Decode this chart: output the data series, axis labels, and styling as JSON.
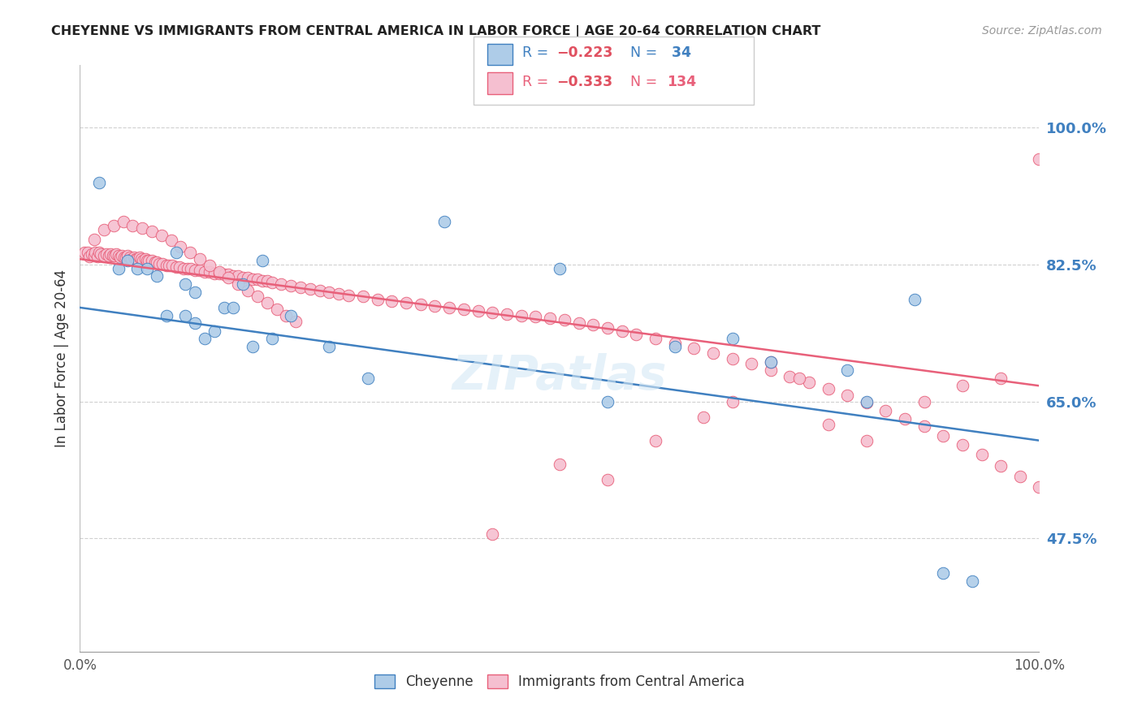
{
  "title": "CHEYENNE VS IMMIGRANTS FROM CENTRAL AMERICA IN LABOR FORCE | AGE 20-64 CORRELATION CHART",
  "source": "Source: ZipAtlas.com",
  "ylabel": "In Labor Force | Age 20-64",
  "xlim": [
    0.0,
    1.0
  ],
  "ylim": [
    0.33,
    1.08
  ],
  "yticks": [
    0.475,
    0.65,
    0.825,
    1.0
  ],
  "ytick_labels": [
    "47.5%",
    "65.0%",
    "82.5%",
    "100.0%"
  ],
  "xticks": [
    0.0,
    1.0
  ],
  "xtick_labels": [
    "0.0%",
    "100.0%"
  ],
  "legend_label_blue": "Cheyenne",
  "legend_label_pink": "Immigrants from Central America",
  "blue_scatter_x": [
    0.02,
    0.04,
    0.05,
    0.06,
    0.07,
    0.08,
    0.09,
    0.1,
    0.11,
    0.11,
    0.12,
    0.12,
    0.13,
    0.14,
    0.15,
    0.16,
    0.17,
    0.18,
    0.19,
    0.2,
    0.22,
    0.26,
    0.3,
    0.38,
    0.5,
    0.55,
    0.62,
    0.68,
    0.72,
    0.8,
    0.82,
    0.87,
    0.9,
    0.93
  ],
  "blue_scatter_y": [
    0.93,
    0.82,
    0.83,
    0.82,
    0.82,
    0.81,
    0.76,
    0.84,
    0.8,
    0.76,
    0.79,
    0.75,
    0.73,
    0.74,
    0.77,
    0.77,
    0.8,
    0.72,
    0.83,
    0.73,
    0.76,
    0.72,
    0.68,
    0.88,
    0.82,
    0.65,
    0.72,
    0.73,
    0.7,
    0.69,
    0.65,
    0.78,
    0.43,
    0.42
  ],
  "pink_scatter_x": [
    0.005,
    0.008,
    0.01,
    0.012,
    0.015,
    0.016,
    0.018,
    0.02,
    0.022,
    0.025,
    0.028,
    0.03,
    0.032,
    0.034,
    0.036,
    0.038,
    0.04,
    0.042,
    0.044,
    0.046,
    0.048,
    0.05,
    0.052,
    0.054,
    0.056,
    0.058,
    0.06,
    0.062,
    0.064,
    0.066,
    0.068,
    0.07,
    0.072,
    0.075,
    0.078,
    0.08,
    0.083,
    0.086,
    0.09,
    0.093,
    0.096,
    0.1,
    0.104,
    0.108,
    0.112,
    0.116,
    0.12,
    0.125,
    0.13,
    0.135,
    0.14,
    0.145,
    0.15,
    0.155,
    0.16,
    0.165,
    0.17,
    0.175,
    0.18,
    0.185,
    0.19,
    0.195,
    0.2,
    0.21,
    0.22,
    0.23,
    0.24,
    0.25,
    0.26,
    0.27,
    0.28,
    0.295,
    0.31,
    0.325,
    0.34,
    0.355,
    0.37,
    0.385,
    0.4,
    0.415,
    0.43,
    0.445,
    0.46,
    0.475,
    0.49,
    0.505,
    0.52,
    0.535,
    0.55,
    0.565,
    0.58,
    0.6,
    0.62,
    0.64,
    0.66,
    0.68,
    0.7,
    0.72,
    0.74,
    0.76,
    0.78,
    0.8,
    0.82,
    0.84,
    0.86,
    0.88,
    0.9,
    0.92,
    0.94,
    0.96,
    0.98,
    1.0,
    0.015,
    0.025,
    0.035,
    0.045,
    0.055,
    0.065,
    0.075,
    0.085,
    0.095,
    0.105,
    0.115,
    0.125,
    0.135,
    0.145,
    0.155,
    0.165,
    0.175,
    0.185,
    0.195,
    0.205,
    0.215,
    0.225
  ],
  "pink_scatter_y": [
    0.84,
    0.84,
    0.835,
    0.838,
    0.836,
    0.84,
    0.835,
    0.84,
    0.838,
    0.836,
    0.838,
    0.836,
    0.838,
    0.836,
    0.836,
    0.838,
    0.836,
    0.834,
    0.836,
    0.834,
    0.834,
    0.836,
    0.834,
    0.832,
    0.834,
    0.832,
    0.832,
    0.834,
    0.832,
    0.83,
    0.832,
    0.83,
    0.83,
    0.83,
    0.828,
    0.828,
    0.826,
    0.826,
    0.824,
    0.824,
    0.824,
    0.822,
    0.822,
    0.82,
    0.82,
    0.82,
    0.818,
    0.818,
    0.816,
    0.816,
    0.814,
    0.814,
    0.812,
    0.812,
    0.81,
    0.81,
    0.808,
    0.808,
    0.806,
    0.806,
    0.804,
    0.804,
    0.802,
    0.8,
    0.798,
    0.796,
    0.794,
    0.792,
    0.79,
    0.788,
    0.786,
    0.784,
    0.78,
    0.778,
    0.776,
    0.774,
    0.772,
    0.77,
    0.768,
    0.766,
    0.764,
    0.762,
    0.76,
    0.758,
    0.756,
    0.754,
    0.75,
    0.748,
    0.744,
    0.74,
    0.736,
    0.73,
    0.724,
    0.718,
    0.712,
    0.705,
    0.698,
    0.69,
    0.682,
    0.674,
    0.666,
    0.658,
    0.648,
    0.638,
    0.628,
    0.618,
    0.606,
    0.594,
    0.582,
    0.568,
    0.554,
    0.54,
    0.857,
    0.87,
    0.875,
    0.88,
    0.875,
    0.872,
    0.868,
    0.862,
    0.856,
    0.848,
    0.84,
    0.832,
    0.824,
    0.816,
    0.808,
    0.8,
    0.792,
    0.784,
    0.776,
    0.768,
    0.76,
    0.752
  ],
  "pink_extra_x": [
    0.43,
    0.5,
    0.55,
    0.6,
    0.65,
    0.68,
    0.72,
    0.75,
    0.78,
    0.82,
    0.88,
    0.92,
    0.96,
    1.0
  ],
  "pink_extra_y": [
    0.48,
    0.57,
    0.55,
    0.6,
    0.63,
    0.65,
    0.7,
    0.68,
    0.62,
    0.6,
    0.65,
    0.67,
    0.68,
    0.96
  ],
  "blue_line_y_start": 0.77,
  "blue_line_y_end": 0.6,
  "pink_line_y_start": 0.832,
  "pink_line_y_end": 0.67,
  "blue_color": "#aecce8",
  "blue_line_color": "#4080c0",
  "pink_color": "#f5bfd0",
  "pink_line_color": "#e8607a",
  "watermark": "ZIPatlas",
  "background_color": "#ffffff",
  "grid_color": "#d0d0d0"
}
